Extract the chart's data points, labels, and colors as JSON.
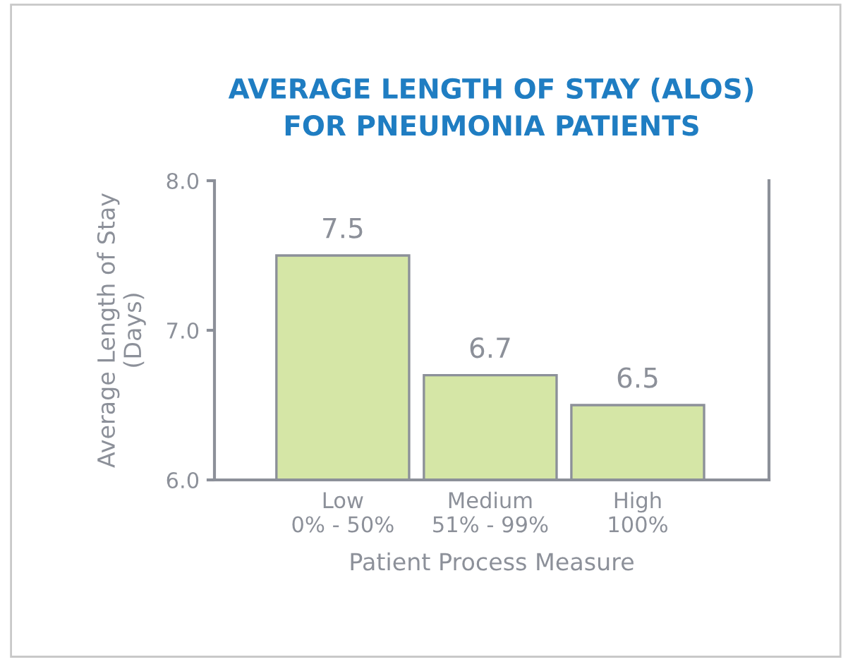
{
  "chart_data": {
    "type": "bar",
    "title": "AVERAGE LENGTH OF STAY (ALOS)\nFOR PNEUMONIA PATIENTS",
    "xlabel": "Patient Process Measure",
    "ylabel": "Average Length of Stay\n(Days)",
    "categories": [
      "Low\n0% - 50%",
      "Medium\n51% - 99%",
      "High\n100%"
    ],
    "values": [
      7.5,
      6.7,
      6.5
    ],
    "color": "#d5e6a6",
    "ylim": [
      6.0,
      8.0
    ],
    "yticks": [
      {
        "value": 6.0,
        "label": "6.0"
      },
      {
        "value": 7.0,
        "label": "7.0"
      },
      {
        "value": 8.0,
        "label": "8.0"
      }
    ],
    "data_labels": true,
    "grid": false,
    "legend": false
  }
}
